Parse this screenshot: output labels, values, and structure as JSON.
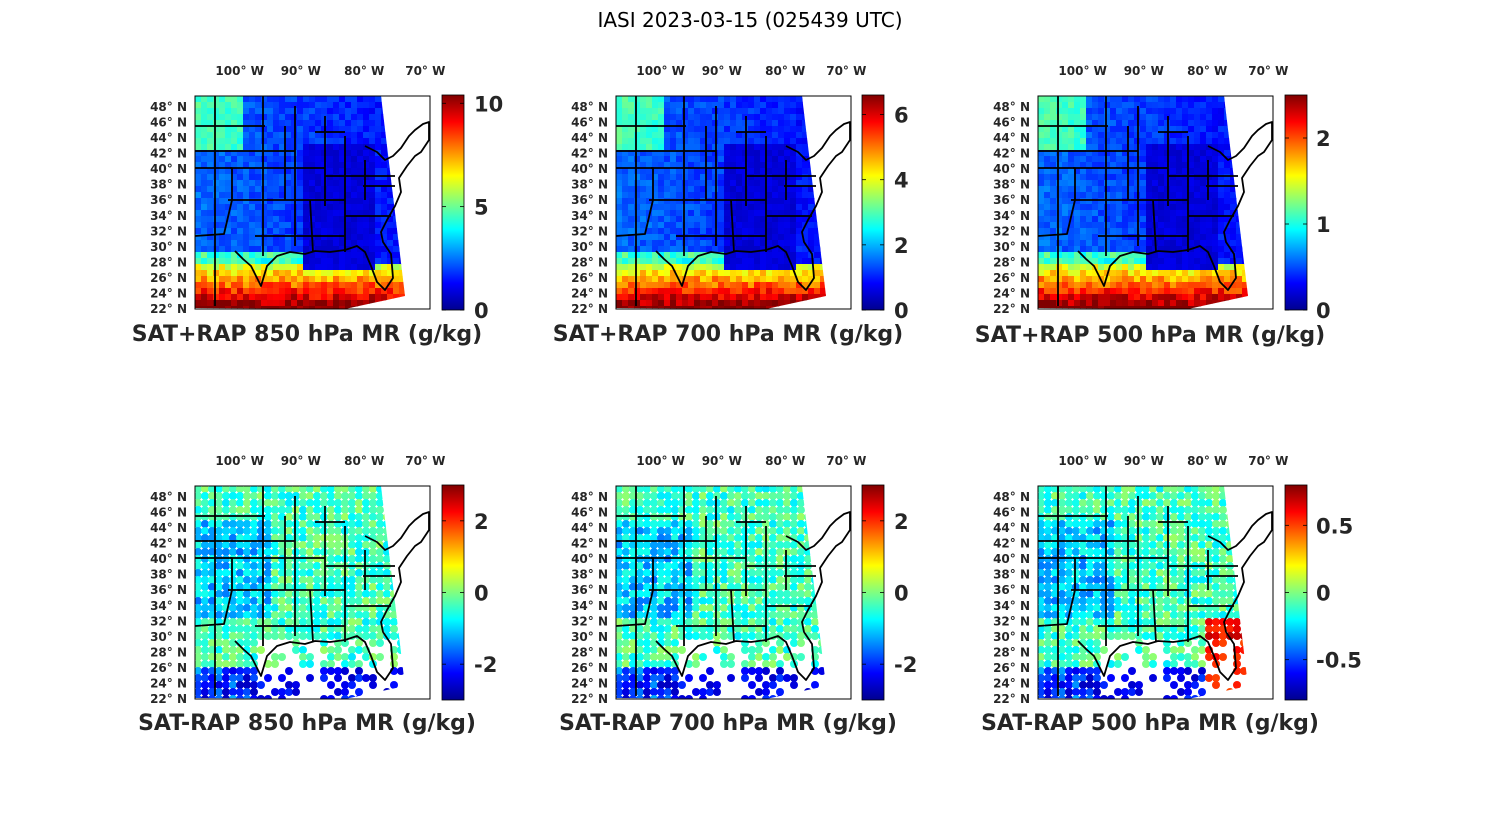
{
  "figure_title": "IASI 2023-03-15 (025439 UTC)",
  "chart_data": [
    {
      "type": "heatmap",
      "title": "SAT+RAP 850 hPa MR (g/kg)",
      "lon_ticks": [
        "100° W",
        "90° W",
        "80° W",
        "70° W"
      ],
      "lat_ticks": [
        "48° N",
        "46° N",
        "44° N",
        "42° N",
        "40° N",
        "38° N",
        "36° N",
        "34° N",
        "32° N",
        "30° N",
        "28° N",
        "26° N",
        "24° N",
        "22° N"
      ],
      "colorbar": {
        "range": [
          0,
          10.4
        ],
        "ticks": [
          0,
          5,
          10
        ],
        "tick_labels": [
          "0",
          "5",
          "10"
        ]
      },
      "field": "moist-south"
    },
    {
      "type": "heatmap",
      "title": "SAT+RAP 700 hPa MR (g/kg)",
      "lon_ticks": [
        "100° W",
        "90° W",
        "80° W",
        "70° W"
      ],
      "lat_ticks": [
        "48° N",
        "46° N",
        "44° N",
        "42° N",
        "40° N",
        "38° N",
        "36° N",
        "34° N",
        "32° N",
        "30° N",
        "28° N",
        "26° N",
        "24° N",
        "22° N"
      ],
      "colorbar": {
        "range": [
          0,
          6.6
        ],
        "ticks": [
          0,
          2,
          4,
          6
        ],
        "tick_labels": [
          "0",
          "2",
          "4",
          "6"
        ]
      },
      "field": "moist-south"
    },
    {
      "type": "heatmap",
      "title": "SAT+RAP 500 hPa MR (g/kg)",
      "lon_ticks": [
        "100° W",
        "90° W",
        "80° W",
        "70° W"
      ],
      "lat_ticks": [
        "48° N",
        "46° N",
        "44° N",
        "42° N",
        "40° N",
        "38° N",
        "36° N",
        "34° N",
        "32° N",
        "30° N",
        "28° N",
        "26° N",
        "24° N",
        "22° N"
      ],
      "colorbar": {
        "range": [
          0,
          2.5
        ],
        "ticks": [
          0,
          1,
          2
        ],
        "tick_labels": [
          "0",
          "1",
          "2"
        ]
      },
      "field": "moist-south"
    },
    {
      "type": "scatter",
      "title": "SAT-RAP 850 hPa MR (g/kg)",
      "lon_ticks": [
        "100° W",
        "90° W",
        "80° W",
        "70° W"
      ],
      "lat_ticks": [
        "48° N",
        "46° N",
        "44° N",
        "42° N",
        "40° N",
        "38° N",
        "36° N",
        "34° N",
        "32° N",
        "30° N",
        "28° N",
        "26° N",
        "24° N",
        "22° N"
      ],
      "colorbar": {
        "range": [
          -3.0,
          3.0
        ],
        "ticks": [
          -2,
          0,
          2
        ],
        "tick_labels": [
          "-2",
          "0",
          "2"
        ]
      },
      "field": "difference"
    },
    {
      "type": "scatter",
      "title": "SAT-RAP 700 hPa MR (g/kg)",
      "lon_ticks": [
        "100° W",
        "90° W",
        "80° W",
        "70° W"
      ],
      "lat_ticks": [
        "48° N",
        "46° N",
        "44° N",
        "42° N",
        "40° N",
        "38° N",
        "36° N",
        "34° N",
        "32° N",
        "30° N",
        "28° N",
        "26° N",
        "24° N",
        "22° N"
      ],
      "colorbar": {
        "range": [
          -3.0,
          3.0
        ],
        "ticks": [
          -2,
          0,
          2
        ],
        "tick_labels": [
          "-2",
          "0",
          "2"
        ]
      },
      "field": "difference"
    },
    {
      "type": "scatter",
      "title": "SAT-RAP 500 hPa MR (g/kg)",
      "lon_ticks": [
        "100° W",
        "90° W",
        "80° W",
        "70° W"
      ],
      "lat_ticks": [
        "48° N",
        "46° N",
        "44° N",
        "42° N",
        "40° N",
        "38° N",
        "36° N",
        "34° N",
        "32° N",
        "30° N",
        "28° N",
        "26° N",
        "24° N",
        "22° N"
      ],
      "colorbar": {
        "range": [
          -0.8,
          0.8
        ],
        "ticks": [
          -0.5,
          0,
          0.5
        ],
        "tick_labels": [
          "-0.5",
          "0",
          "0.5"
        ]
      },
      "field": "difference"
    }
  ]
}
